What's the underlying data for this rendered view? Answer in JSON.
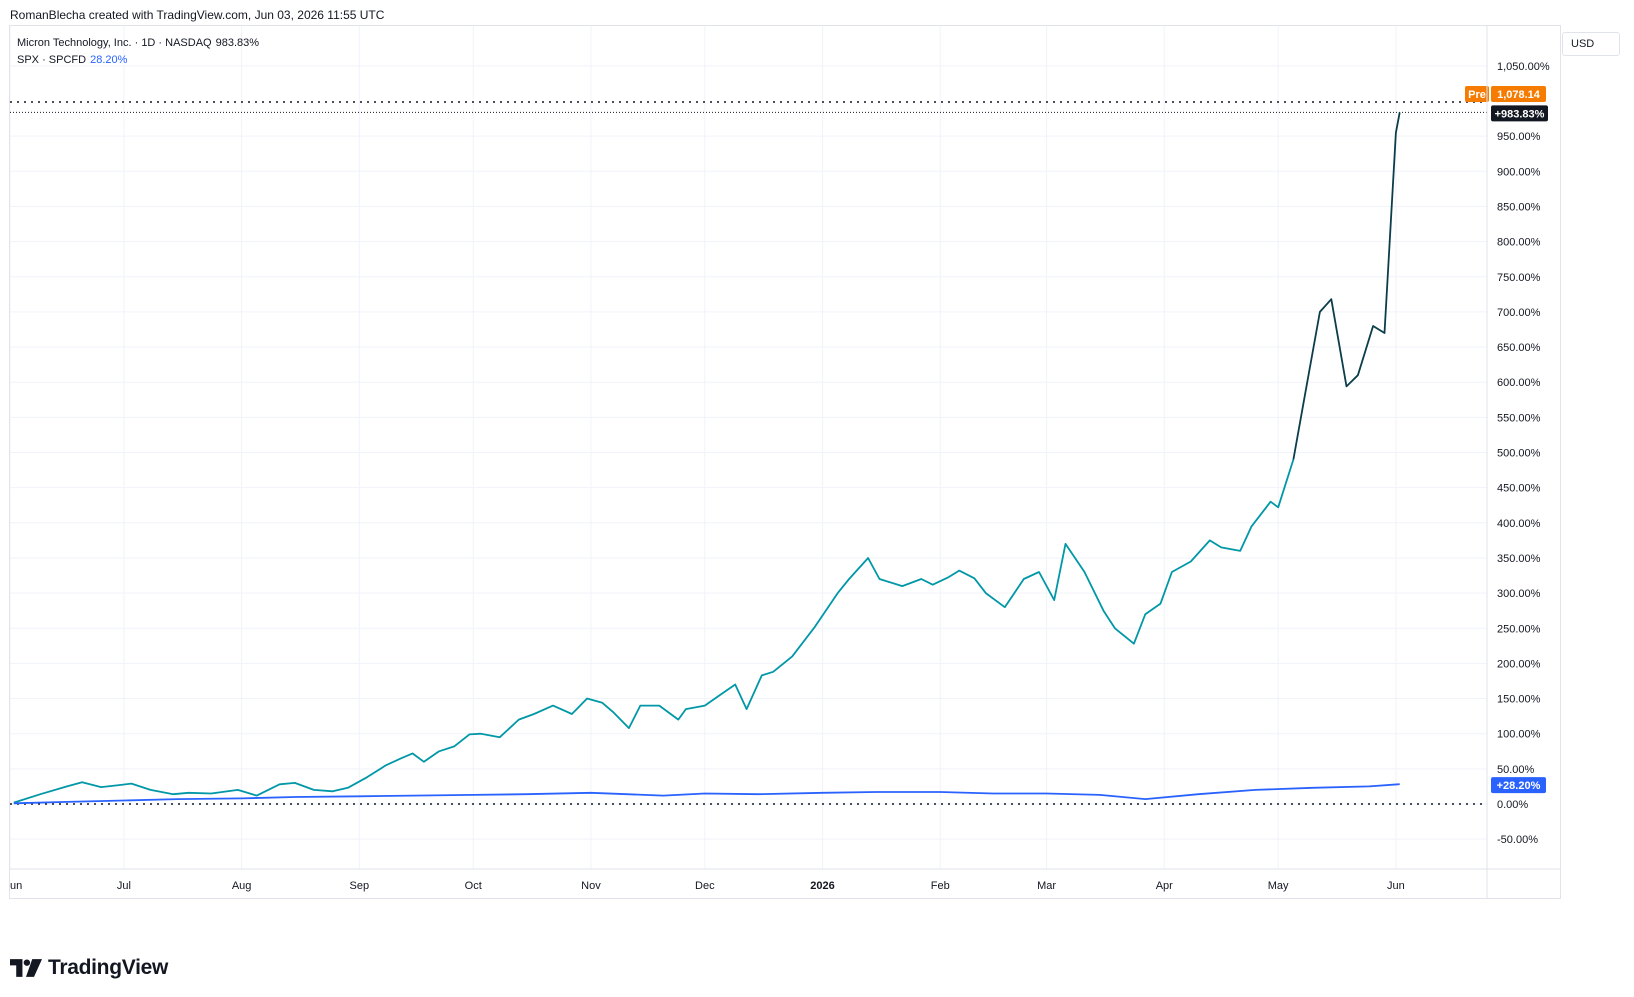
{
  "credit": "RomanBlecha created with TradingView.com, Jun 03, 2026 11:55 UTC",
  "legend": {
    "main_name": "Micron Technology, Inc. · 1D · NASDAQ",
    "main_value": "983.83%",
    "compare_name": "SPX · SPCFD",
    "compare_value": "28.20%"
  },
  "currency": "USD",
  "brand": "TradingView",
  "badges": {
    "pre_label": "Pre",
    "pre_value": "1,078.14",
    "main_last": "+983.83%",
    "compare_last": "+28.20%"
  },
  "colors": {
    "main_line": "#0097a7",
    "main_line_recent": "#0b3d4a",
    "compare_line": "#2962ff",
    "pre_badge": "#f57c00",
    "main_badge": "#131722",
    "compare_badge": "#2962ff"
  },
  "chart_data": {
    "type": "line",
    "x_axis_labels": [
      "un",
      "Jul",
      "Aug",
      "Sep",
      "Oct",
      "Nov",
      "Dec",
      "2026",
      "Feb",
      "Mar",
      "Apr",
      "May",
      "Jun"
    ],
    "x_axis_label_dates": [
      "2025-06-01",
      "2025-07-01",
      "2025-08-01",
      "2025-09-01",
      "2025-10-01",
      "2025-11-01",
      "2025-12-01",
      "2026-01-01",
      "2026-02-01",
      "2026-03-01",
      "2026-04-01",
      "2026-05-01",
      "2026-06-01"
    ],
    "x_range": [
      "2025-06-01",
      "2026-06-25"
    ],
    "y_axis_ticks": [
      "1,050.00%",
      "950.00%",
      "900.00%",
      "850.00%",
      "800.00%",
      "750.00%",
      "700.00%",
      "650.00%",
      "600.00%",
      "550.00%",
      "500.00%",
      "450.00%",
      "400.00%",
      "350.00%",
      "300.00%",
      "250.00%",
      "200.00%",
      "150.00%",
      "100.00%",
      "50.00%",
      "0.00%",
      "-50.00%"
    ],
    "y_axis_tick_values": [
      1050,
      950,
      900,
      850,
      800,
      750,
      700,
      650,
      600,
      550,
      500,
      450,
      400,
      350,
      300,
      250,
      200,
      150,
      100,
      50,
      0,
      -50
    ],
    "ylim": [
      -72,
      1080
    ],
    "y_unit": "%",
    "series": [
      {
        "name": "Micron Technology, Inc.",
        "x": [
          "2025-06-02",
          "2025-06-09",
          "2025-06-16",
          "2025-06-20",
          "2025-06-25",
          "2025-06-30",
          "2025-07-03",
          "2025-07-08",
          "2025-07-14",
          "2025-07-18",
          "2025-07-24",
          "2025-07-31",
          "2025-08-05",
          "2025-08-11",
          "2025-08-15",
          "2025-08-20",
          "2025-08-25",
          "2025-08-29",
          "2025-09-03",
          "2025-09-08",
          "2025-09-12",
          "2025-09-15",
          "2025-09-18",
          "2025-09-22",
          "2025-09-26",
          "2025-09-30",
          "2025-10-03",
          "2025-10-08",
          "2025-10-13",
          "2025-10-17",
          "2025-10-22",
          "2025-10-27",
          "2025-10-31",
          "2025-11-04",
          "2025-11-07",
          "2025-11-11",
          "2025-11-14",
          "2025-11-19",
          "2025-11-24",
          "2025-11-26",
          "2025-12-01",
          "2025-12-05",
          "2025-12-09",
          "2025-12-12",
          "2025-12-16",
          "2025-12-19",
          "2025-12-24",
          "2025-12-30",
          "2026-01-05",
          "2026-01-08",
          "2026-01-13",
          "2026-01-16",
          "2026-01-22",
          "2026-01-27",
          "2026-01-30",
          "2026-02-03",
          "2026-02-06",
          "2026-02-10",
          "2026-02-13",
          "2026-02-18",
          "2026-02-23",
          "2026-02-27",
          "2026-03-03",
          "2026-03-06",
          "2026-03-11",
          "2026-03-16",
          "2026-03-19",
          "2026-03-24",
          "2026-03-27",
          "2026-03-31",
          "2026-04-03",
          "2026-04-08",
          "2026-04-13",
          "2026-04-16",
          "2026-04-21",
          "2026-04-24",
          "2026-04-29",
          "2026-05-01",
          "2026-05-05",
          "2026-05-08",
          "2026-05-12",
          "2026-05-15",
          "2026-05-19",
          "2026-05-22",
          "2026-05-26",
          "2026-05-29",
          "2026-06-01",
          "2026-06-02"
        ],
        "values": [
          2,
          14,
          25,
          31,
          24,
          27,
          29,
          20,
          14,
          16,
          15,
          20,
          12,
          28,
          30,
          20,
          18,
          23,
          38,
          55,
          65,
          72,
          60,
          75,
          82,
          99,
          100,
          95,
          120,
          128,
          140,
          128,
          150,
          144,
          130,
          108,
          140,
          140,
          120,
          135,
          140,
          155,
          170,
          135,
          183,
          188,
          210,
          252,
          300,
          320,
          350,
          320,
          310,
          320,
          312,
          322,
          332,
          321,
          300,
          280,
          320,
          330,
          290,
          370,
          330,
          275,
          250,
          228,
          270,
          285,
          330,
          345,
          375,
          365,
          360,
          395,
          430,
          422,
          490,
          580,
          700,
          718,
          594,
          610,
          680,
          670,
          955,
          983.83
        ],
        "ylabel": "%"
      },
      {
        "name": "SPX",
        "x": [
          "2025-06-02",
          "2025-06-16",
          "2025-07-01",
          "2025-07-15",
          "2025-08-01",
          "2025-08-15",
          "2025-09-01",
          "2025-09-15",
          "2025-10-01",
          "2025-10-15",
          "2025-11-01",
          "2025-11-20",
          "2025-12-01",
          "2025-12-15",
          "2026-01-01",
          "2026-01-15",
          "2026-02-01",
          "2026-02-15",
          "2026-03-01",
          "2026-03-15",
          "2026-03-27",
          "2026-04-10",
          "2026-04-25",
          "2026-05-10",
          "2026-05-25",
          "2026-06-02"
        ],
        "values": [
          1,
          3,
          5,
          7,
          8,
          10,
          11,
          12,
          13,
          14,
          16,
          12,
          15,
          14,
          16,
          17,
          17,
          15,
          15,
          13,
          7,
          14,
          20,
          23,
          25,
          28.2
        ]
      }
    ],
    "reference_lines": [
      {
        "label": "Pre",
        "value_label": "1,078.14"
      },
      {
        "label": "+983.83%",
        "value": 983.83
      },
      {
        "label": "0.00%",
        "value": 0
      }
    ]
  }
}
